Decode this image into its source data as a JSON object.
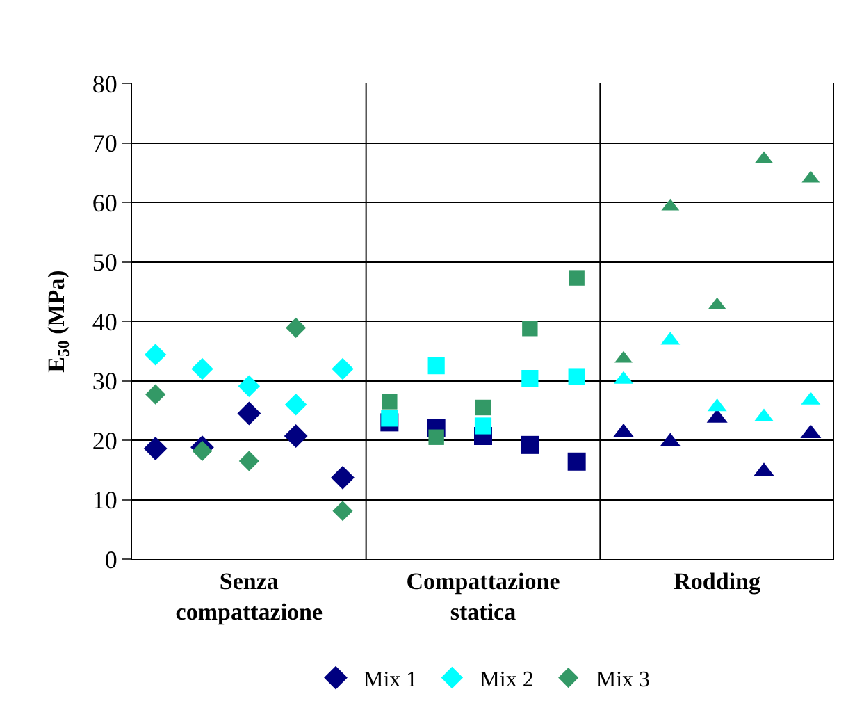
{
  "chart_data": {
    "type": "scatter",
    "ylabel": "E$_{50}$ (MPa)",
    "categories": [
      null,
      null,
      "Senza compattazione",
      null,
      null,
      null,
      null,
      "Compattazione statica",
      null,
      null,
      null,
      null,
      "Rodding",
      null,
      null
    ],
    "ylim": [
      0,
      80
    ],
    "yticks": [
      0,
      10,
      20,
      30,
      40,
      50,
      60,
      70,
      80
    ],
    "grid": "y",
    "legend": "bottom",
    "series": [
      {
        "name": "Mix 1",
        "color": "#000080",
        "marker": "diamond",
        "values": [
          18.6,
          18.8,
          24.5,
          20.7,
          13.7,
          null,
          null,
          null,
          null,
          null,
          null,
          null,
          null,
          null,
          null
        ]
      },
      {
        "name": "Mix 2",
        "color": "#00ffff",
        "marker": "diamond",
        "values": [
          34.4,
          32.0,
          29.1,
          26.0,
          32.0,
          null,
          null,
          null,
          null,
          null,
          null,
          null,
          null,
          null,
          null
        ]
      },
      {
        "name": "Mix 3",
        "color": "#339966",
        "marker": "diamond",
        "values": [
          27.7,
          18.2,
          16.5,
          38.9,
          8.1,
          null,
          null,
          null,
          null,
          null,
          null,
          null,
          null,
          null,
          null
        ]
      },
      {
        "color": "#000080",
        "marker": "square",
        "values": [
          null,
          null,
          null,
          null,
          null,
          23.0,
          22.1,
          20.7,
          19.2,
          16.4,
          null,
          null,
          null,
          null,
          null
        ]
      },
      {
        "color": "#00ffff",
        "marker": "square",
        "values": [
          null,
          null,
          null,
          null,
          null,
          23.7,
          32.5,
          22.4,
          30.4,
          30.7,
          null,
          null,
          null,
          null,
          null
        ]
      },
      {
        "color": "#339966",
        "marker": "square",
        "values": [
          null,
          null,
          null,
          null,
          null,
          26.5,
          20.5,
          25.5,
          38.8,
          47.3,
          null,
          null,
          null,
          null,
          null
        ]
      },
      {
        "color": "#000080",
        "marker": "triangle",
        "values": [
          null,
          null,
          null,
          null,
          null,
          null,
          null,
          null,
          null,
          null,
          21.3,
          19.7,
          23.7,
          14.7,
          21.1
        ]
      },
      {
        "color": "#00ffff",
        "marker": "triangle",
        "values": [
          null,
          null,
          null,
          null,
          null,
          null,
          null,
          null,
          null,
          null,
          30.2,
          36.8,
          25.6,
          23.9,
          26.7
        ]
      },
      {
        "color": "#339966",
        "marker": "triangle",
        "values": [
          null,
          null,
          null,
          null,
          null,
          null,
          null,
          null,
          null,
          null,
          33.7,
          59.3,
          42.7,
          67.3,
          64.0
        ]
      }
    ]
  }
}
